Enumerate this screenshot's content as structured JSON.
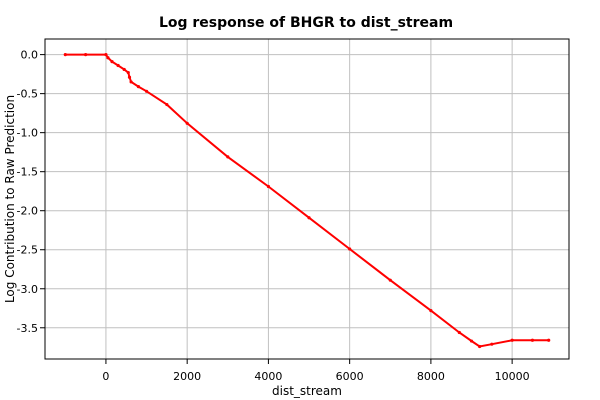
{
  "chart_data": {
    "type": "line",
    "title": "Log response of BHGR to dist_stream",
    "xlabel": "dist_stream",
    "ylabel": "Log Contribution to Raw Prediction",
    "xlim": [
      -1500,
      11400
    ],
    "ylim": [
      -3.9,
      0.2
    ],
    "xticks": [
      0,
      2000,
      4000,
      6000,
      8000,
      10000
    ],
    "yticks": [
      0.0,
      -0.5,
      -1.0,
      -1.5,
      -2.0,
      -2.5,
      -3.0,
      -3.5
    ],
    "xtick_labels": [
      "0",
      "2000",
      "4000",
      "6000",
      "8000",
      "10000"
    ],
    "ytick_labels": [
      "0.0",
      "-0.5",
      "-1.0",
      "-1.5",
      "-2.0",
      "-2.5",
      "-3.0",
      "-3.5"
    ],
    "grid": true,
    "series": [
      {
        "color": "#ff0000",
        "x": [
          -1000,
          -500,
          0,
          50,
          150,
          300,
          450,
          550,
          580,
          620,
          800,
          1000,
          1500,
          2000,
          3000,
          4000,
          5000,
          6000,
          7000,
          8000,
          8700,
          9000,
          9200,
          9500,
          10000,
          10500,
          10900
        ],
        "y": [
          0.0,
          0.0,
          0.0,
          -0.04,
          -0.09,
          -0.14,
          -0.19,
          -0.23,
          -0.29,
          -0.35,
          -0.41,
          -0.47,
          -0.64,
          -0.88,
          -1.31,
          -1.69,
          -2.09,
          -2.49,
          -2.89,
          -3.28,
          -3.56,
          -3.67,
          -3.74,
          -3.71,
          -3.66,
          -3.66,
          -3.66
        ]
      }
    ]
  }
}
